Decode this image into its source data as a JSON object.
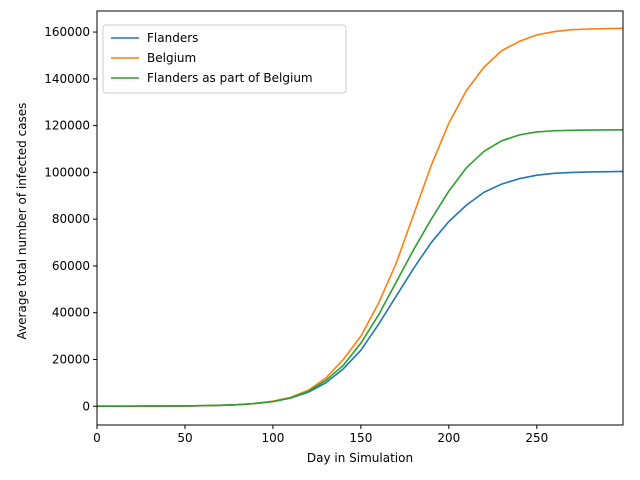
{
  "chart_data": {
    "type": "line",
    "title": "",
    "xlabel": "Day in Simulation",
    "ylabel": "Average total number of infected cases",
    "xlim": [
      0,
      299
    ],
    "ylim": [
      -8000,
      169000
    ],
    "xticks": [
      0,
      50,
      100,
      150,
      200,
      250
    ],
    "yticks": [
      0,
      20000,
      40000,
      60000,
      80000,
      100000,
      120000,
      140000,
      160000
    ],
    "grid": false,
    "legend": {
      "placement": "top-left"
    },
    "x": [
      0,
      10,
      20,
      30,
      40,
      50,
      60,
      70,
      80,
      90,
      100,
      110,
      120,
      130,
      140,
      150,
      160,
      170,
      180,
      190,
      200,
      210,
      220,
      230,
      240,
      250,
      260,
      270,
      280,
      290,
      299
    ],
    "series": [
      {
        "name": "Flanders",
        "color": "#1f77b4",
        "values": [
          50,
          60,
          70,
          80,
          100,
          150,
          250,
          400,
          700,
          1200,
          2000,
          3500,
          6000,
          10000,
          16000,
          24000,
          35000,
          47000,
          59000,
          70000,
          79000,
          86000,
          91500,
          95000,
          97300,
          98800,
          99600,
          100000,
          100200,
          100300,
          100400
        ]
      },
      {
        "name": "Belgium",
        "color": "#ff7f0e",
        "values": [
          50,
          60,
          70,
          80,
          100,
          150,
          250,
          400,
          700,
          1200,
          2200,
          3800,
          6800,
          12000,
          20000,
          30000,
          44000,
          61000,
          82000,
          103000,
          121000,
          135000,
          145000,
          152000,
          156000,
          158800,
          160200,
          161000,
          161300,
          161500,
          161600
        ]
      },
      {
        "name": "Flanders as part of Belgium",
        "color": "#2ca02c",
        "values": [
          50,
          60,
          70,
          80,
          100,
          150,
          250,
          400,
          700,
          1200,
          2000,
          3600,
          6300,
          11000,
          17500,
          27000,
          39000,
          53000,
          67000,
          80000,
          92000,
          102000,
          109000,
          113500,
          116000,
          117300,
          117800,
          118000,
          118100,
          118150,
          118200
        ]
      }
    ]
  }
}
